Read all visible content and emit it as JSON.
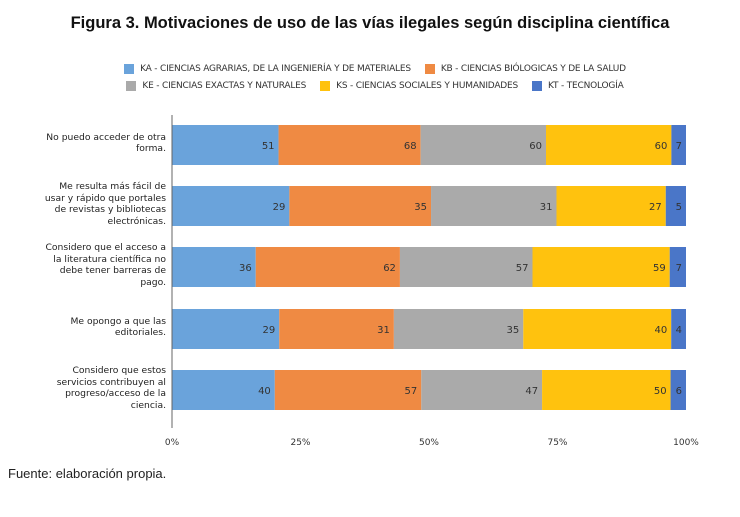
{
  "chart_data": {
    "type": "bar",
    "orientation": "horizontal",
    "stacked": "percent",
    "title": "Figura 3. Motivaciones de uso de las vías ilegales según disciplina científica",
    "categories": [
      "No puedo acceder de otra\nforma.",
      "Me resulta más fácil de\nusar y rápido que portales\nde revistas y bibliotecas\nelectrónicas.",
      "Considero que el acceso a\nla literatura científica no\ndebe tener barreras de\npago.",
      "Me opongo a que las\neditoriales.",
      "Considero que estos\nservicios contribuyen al\nprogreso/acceso de la\nciencia."
    ],
    "series": [
      {
        "name": "KA - CIENCIAS AGRARIAS, DE LA INGENIERÍA Y DE MATERIALES",
        "color": "#6aa3db",
        "values": [
          51,
          29,
          36,
          29,
          40
        ]
      },
      {
        "name": "KB - CIENCIAS BIÓLOGICAS Y DE LA SALUD",
        "color": "#ef8a43",
        "values": [
          68,
          35,
          62,
          31,
          57
        ]
      },
      {
        "name": "KE - CIENCIAS EXACTAS Y NATURALES",
        "color": "#aaaaaa",
        "values": [
          60,
          31,
          57,
          35,
          47
        ]
      },
      {
        "name": "KS - CIENCIAS SOCIALES Y HUMANIDADES",
        "color": "#ffc20e",
        "values": [
          60,
          27,
          59,
          40,
          50
        ]
      },
      {
        "name": "KT - TECNOLOGÍA",
        "color": "#4a76c8",
        "values": [
          7,
          5,
          7,
          4,
          6
        ]
      }
    ],
    "xticks": [
      "0%",
      "25%",
      "50%",
      "75%",
      "100%"
    ],
    "xlim": [
      0,
      100
    ],
    "grid": false,
    "legend": "top"
  },
  "source": "Fuente: elaboración propia."
}
